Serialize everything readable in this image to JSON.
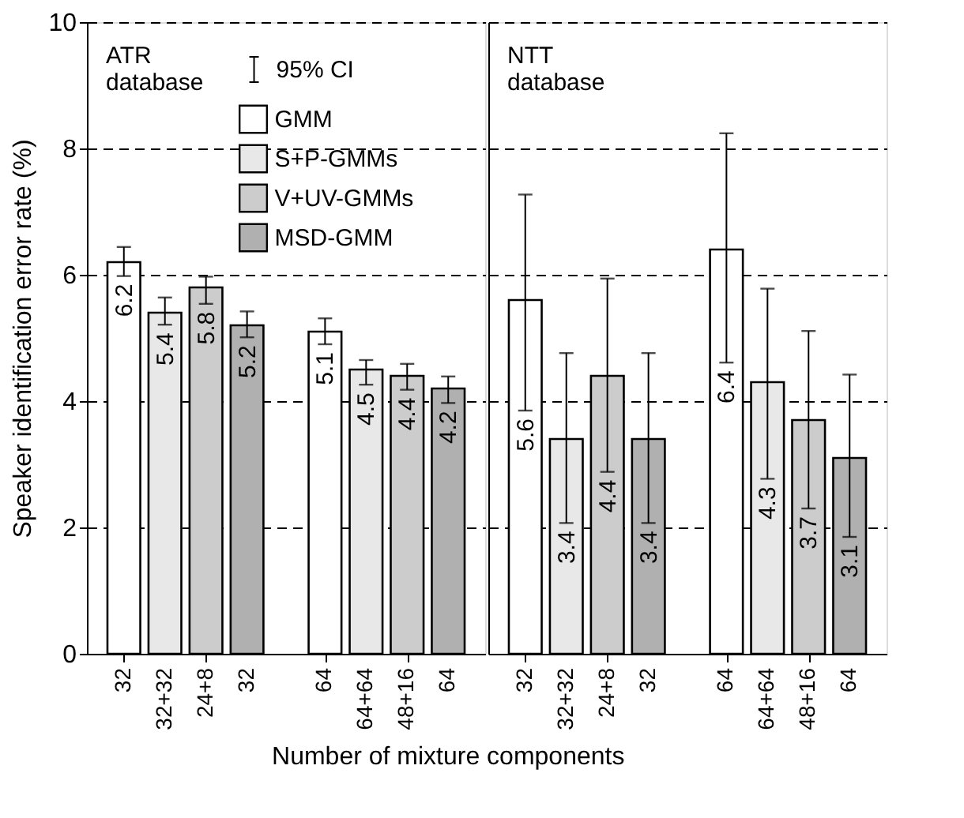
{
  "chart_data": [
    {
      "type": "bar",
      "title": "ATR\ndatabase",
      "ylabel": "Speaker identification error rate (%)",
      "xlabel": "Number of mixture components",
      "categories": [
        "32",
        "32+32",
        "24+8",
        "32",
        "64",
        "64+64",
        "48+16",
        "64"
      ],
      "series": [
        {
          "name": "GMM",
          "color": "#ffffff",
          "values": [
            6.2,
            null,
            null,
            null,
            5.1,
            null,
            null,
            null
          ],
          "errors": [
            [
              5.98,
              6.44
            ],
            null,
            null,
            null,
            [
              4.9,
              5.31
            ],
            null,
            null,
            null
          ]
        },
        {
          "name": "S+P-GMMs",
          "color": "#e8e8e8",
          "values": [
            null,
            5.4,
            null,
            null,
            null,
            4.5,
            null,
            null
          ],
          "errors": [
            null,
            [
              5.21,
              5.64
            ],
            null,
            null,
            null,
            [
              4.26,
              4.65
            ],
            null,
            null
          ]
        },
        {
          "name": "V+UV-GMMs",
          "color": "#cccccc",
          "values": [
            null,
            null,
            5.8,
            null,
            null,
            null,
            4.4,
            null
          ],
          "errors": [
            null,
            null,
            [
              5.54,
              5.97
            ],
            null,
            null,
            null,
            [
              4.18,
              4.59
            ],
            null
          ]
        },
        {
          "name": "MSD-GMM",
          "color": "#b0b0b0",
          "values": [
            null,
            null,
            null,
            5.2,
            null,
            null,
            null,
            4.2
          ],
          "errors": [
            null,
            null,
            null,
            [
              5.01,
              5.42
            ],
            null,
            null,
            null,
            [
              3.97,
              4.39
            ]
          ]
        }
      ],
      "annotations": [
        "95% CI"
      ],
      "ylim": [
        0,
        10
      ],
      "yticks": [
        0,
        2,
        4,
        6,
        8,
        10
      ],
      "grid": "y",
      "legend": "top",
      "data_labels": true
    },
    {
      "type": "bar",
      "title": "NTT\ndatabase",
      "categories": [
        "32",
        "32+32",
        "24+8",
        "32",
        "64",
        "64+64",
        "48+16",
        "64"
      ],
      "series": [
        {
          "color": "#ffffff",
          "values": [
            5.6,
            null,
            null,
            null,
            6.4,
            null,
            null,
            null
          ],
          "errors": [
            [
              3.85,
              7.27
            ],
            null,
            null,
            null,
            [
              4.61,
              8.24
            ],
            null,
            null,
            null
          ]
        },
        {
          "color": "#e8e8e8",
          "values": [
            null,
            3.4,
            null,
            null,
            null,
            4.3,
            null,
            null
          ],
          "errors": [
            null,
            [
              2.07,
              4.76
            ],
            null,
            null,
            null,
            [
              2.77,
              5.78
            ],
            null,
            null
          ]
        },
        {
          "color": "#cccccc",
          "values": [
            null,
            null,
            4.4,
            null,
            null,
            null,
            3.7,
            null
          ],
          "errors": [
            null,
            null,
            [
              2.88,
              5.94
            ],
            null,
            null,
            null,
            [
              2.3,
              5.11
            ],
            null
          ]
        },
        {
          "color": "#b0b0b0",
          "values": [
            null,
            null,
            null,
            3.4,
            null,
            null,
            null,
            3.1
          ],
          "errors": [
            null,
            null,
            null,
            [
              2.07,
              4.76
            ],
            null,
            null,
            null,
            [
              1.85,
              4.42
            ]
          ]
        }
      ],
      "ylim": [
        0,
        10
      ],
      "yticks": [
        0,
        2,
        4,
        6,
        8,
        10
      ],
      "grid": "y",
      "tick_labels": "x",
      "data_labels": true
    }
  ]
}
